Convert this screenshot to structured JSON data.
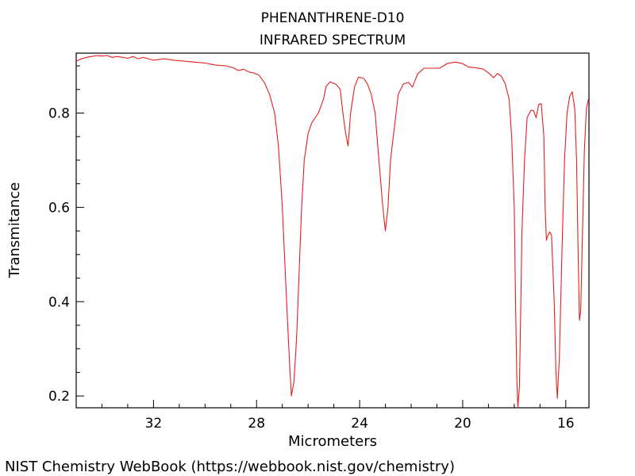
{
  "chart_data": {
    "type": "line",
    "title_lines": [
      "PHENANTHRENE-D10",
      "INFRARED SPECTRUM"
    ],
    "xlabel": "Micrometers",
    "ylabel": "Transmitance",
    "x_reversed": true,
    "xlim": [
      35.0,
      15.1
    ],
    "ylim": [
      0.175,
      0.927
    ],
    "x_major_ticks": [
      32,
      28,
      24,
      20,
      16
    ],
    "x_minor_ticks": [
      34,
      33,
      31,
      30,
      29,
      27,
      26,
      25,
      23,
      22,
      21,
      19,
      18,
      17
    ],
    "y_major_ticks": [
      0.2,
      0.4,
      0.6,
      0.8
    ],
    "y_minor_ticks": [
      0.25,
      0.3,
      0.35,
      0.45,
      0.5,
      0.55,
      0.65,
      0.7,
      0.75,
      0.85,
      0.9
    ],
    "line_color": "#e0201c",
    "series": [
      {
        "values": [
          [
            35.0,
            0.91
          ],
          [
            34.8,
            0.915
          ],
          [
            34.6,
            0.918
          ],
          [
            34.4,
            0.92
          ],
          [
            34.2,
            0.922
          ],
          [
            34.0,
            0.921
          ],
          [
            33.8,
            0.922
          ],
          [
            33.6,
            0.918
          ],
          [
            33.4,
            0.92
          ],
          [
            33.2,
            0.918
          ],
          [
            33.0,
            0.916
          ],
          [
            32.8,
            0.92
          ],
          [
            32.6,
            0.915
          ],
          [
            32.4,
            0.918
          ],
          [
            32.2,
            0.915
          ],
          [
            32.0,
            0.912
          ],
          [
            31.6,
            0.915
          ],
          [
            31.2,
            0.912
          ],
          [
            30.8,
            0.91
          ],
          [
            30.4,
            0.908
          ],
          [
            30.0,
            0.906
          ],
          [
            29.6,
            0.902
          ],
          [
            29.2,
            0.9
          ],
          [
            28.9,
            0.896
          ],
          [
            28.7,
            0.89
          ],
          [
            28.5,
            0.893
          ],
          [
            28.3,
            0.887
          ],
          [
            28.1,
            0.885
          ],
          [
            27.9,
            0.88
          ],
          [
            27.7,
            0.865
          ],
          [
            27.5,
            0.84
          ],
          [
            27.3,
            0.8
          ],
          [
            27.15,
            0.73
          ],
          [
            27.0,
            0.6
          ],
          [
            26.9,
            0.48
          ],
          [
            26.8,
            0.36
          ],
          [
            26.72,
            0.27
          ],
          [
            26.65,
            0.2
          ],
          [
            26.55,
            0.23
          ],
          [
            26.45,
            0.32
          ],
          [
            26.35,
            0.46
          ],
          [
            26.25,
            0.6
          ],
          [
            26.15,
            0.7
          ],
          [
            26.0,
            0.757
          ],
          [
            25.85,
            0.78
          ],
          [
            25.6,
            0.8
          ],
          [
            25.4,
            0.83
          ],
          [
            25.3,
            0.857
          ],
          [
            25.15,
            0.866
          ],
          [
            25.0,
            0.863
          ],
          [
            24.9,
            0.86
          ],
          [
            24.75,
            0.85
          ],
          [
            24.65,
            0.8
          ],
          [
            24.55,
            0.76
          ],
          [
            24.45,
            0.73
          ],
          [
            24.35,
            0.8
          ],
          [
            24.2,
            0.855
          ],
          [
            24.05,
            0.876
          ],
          [
            23.85,
            0.874
          ],
          [
            23.7,
            0.862
          ],
          [
            23.55,
            0.84
          ],
          [
            23.4,
            0.8
          ],
          [
            23.25,
            0.7
          ],
          [
            23.1,
            0.6
          ],
          [
            23.0,
            0.55
          ],
          [
            22.9,
            0.6
          ],
          [
            22.8,
            0.7
          ],
          [
            22.65,
            0.77
          ],
          [
            22.5,
            0.84
          ],
          [
            22.3,
            0.862
          ],
          [
            22.1,
            0.865
          ],
          [
            21.95,
            0.855
          ],
          [
            21.75,
            0.883
          ],
          [
            21.5,
            0.895
          ],
          [
            21.2,
            0.895
          ],
          [
            20.9,
            0.895
          ],
          [
            20.6,
            0.905
          ],
          [
            20.3,
            0.908
          ],
          [
            20.0,
            0.905
          ],
          [
            19.8,
            0.898
          ],
          [
            19.5,
            0.896
          ],
          [
            19.2,
            0.893
          ],
          [
            18.95,
            0.883
          ],
          [
            18.8,
            0.875
          ],
          [
            18.65,
            0.884
          ],
          [
            18.5,
            0.878
          ],
          [
            18.35,
            0.862
          ],
          [
            18.2,
            0.83
          ],
          [
            18.1,
            0.75
          ],
          [
            18.0,
            0.6
          ],
          [
            17.95,
            0.4
          ],
          [
            17.9,
            0.24
          ],
          [
            17.86,
            0.17
          ],
          [
            17.8,
            0.22
          ],
          [
            17.75,
            0.38
          ],
          [
            17.7,
            0.55
          ],
          [
            17.6,
            0.7
          ],
          [
            17.5,
            0.79
          ],
          [
            17.35,
            0.806
          ],
          [
            17.25,
            0.805
          ],
          [
            17.15,
            0.79
          ],
          [
            17.05,
            0.818
          ],
          [
            16.95,
            0.82
          ],
          [
            16.85,
            0.75
          ],
          [
            16.8,
            0.6
          ],
          [
            16.75,
            0.53
          ],
          [
            16.7,
            0.54
          ],
          [
            16.62,
            0.548
          ],
          [
            16.55,
            0.54
          ],
          [
            16.45,
            0.4
          ],
          [
            16.38,
            0.25
          ],
          [
            16.33,
            0.195
          ],
          [
            16.25,
            0.28
          ],
          [
            16.15,
            0.5
          ],
          [
            16.05,
            0.7
          ],
          [
            15.95,
            0.8
          ],
          [
            15.85,
            0.835
          ],
          [
            15.75,
            0.845
          ],
          [
            15.65,
            0.81
          ],
          [
            15.58,
            0.7
          ],
          [
            15.52,
            0.5
          ],
          [
            15.47,
            0.36
          ],
          [
            15.42,
            0.38
          ],
          [
            15.35,
            0.55
          ],
          [
            15.28,
            0.72
          ],
          [
            15.2,
            0.81
          ],
          [
            15.12,
            0.83
          ]
        ]
      }
    ]
  },
  "credit": "NIST Chemistry WebBook (https://webbook.nist.gov/chemistry)"
}
